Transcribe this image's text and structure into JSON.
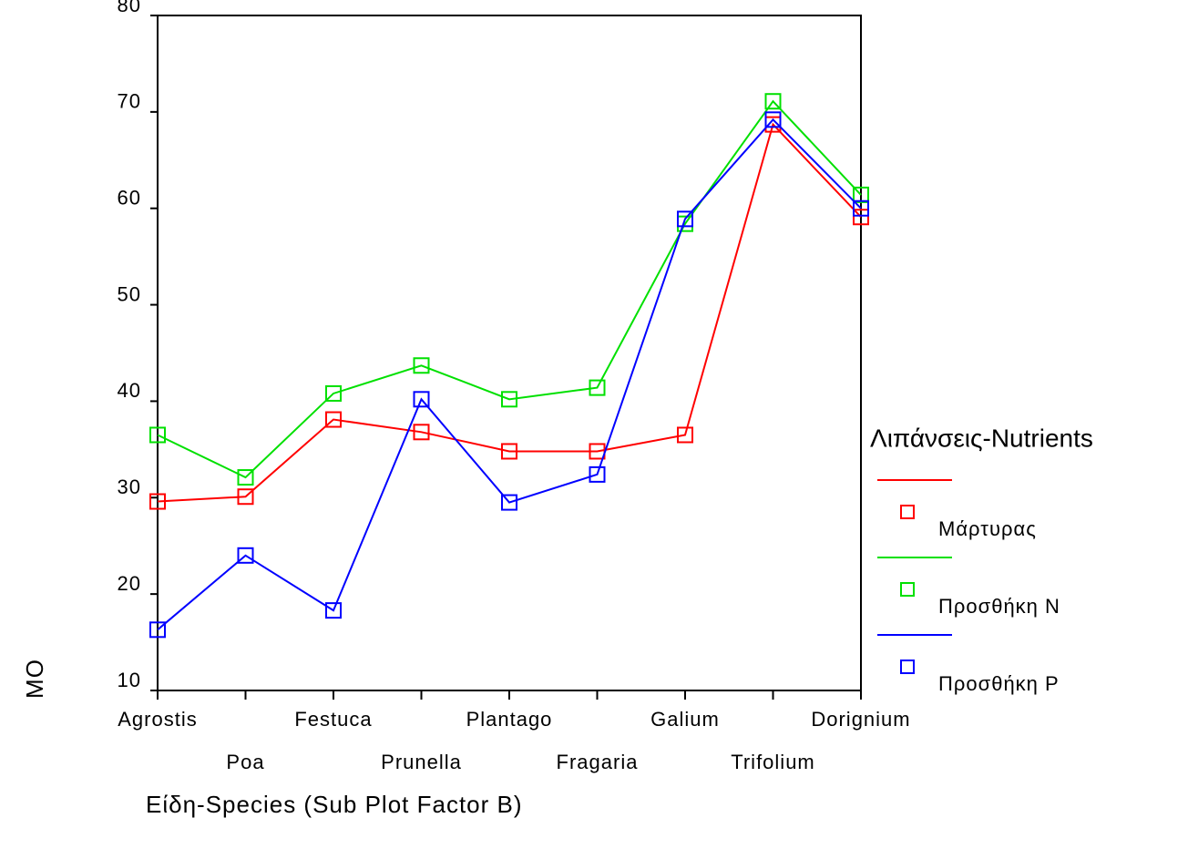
{
  "chart_data": {
    "type": "line",
    "y_label": "MO",
    "x_label": "Είδη-Species (Sub Plot Factor B)",
    "legend_title": "Λιπάνσεις-Nutrients",
    "categories": [
      "Agrostis",
      "Poa",
      "Festuca",
      "Prunella",
      "Plantago",
      "Fragaria",
      "Galium",
      "Trifolium",
      "Dorignium"
    ],
    "series": [
      {
        "name": "Μάρτυρας",
        "color": "#ff0000",
        "values": [
          29.6,
          30.1,
          38.1,
          36.8,
          34.8,
          34.8,
          36.5,
          68.7,
          59.1
        ]
      },
      {
        "name": "Προσθήκη N",
        "color": "#00e000",
        "values": [
          36.5,
          32.1,
          40.8,
          43.7,
          40.2,
          41.4,
          58.4,
          71.1,
          61.4
        ]
      },
      {
        "name": "Προσθήκη P",
        "color": "#0000ff",
        "values": [
          16.3,
          24.0,
          18.3,
          40.2,
          29.5,
          32.4,
          58.9,
          69.2,
          60.0
        ]
      }
    ],
    "ylim": [
      10,
      80
    ],
    "yticks": [
      10,
      20,
      30,
      40,
      50,
      60,
      70,
      80
    ]
  }
}
